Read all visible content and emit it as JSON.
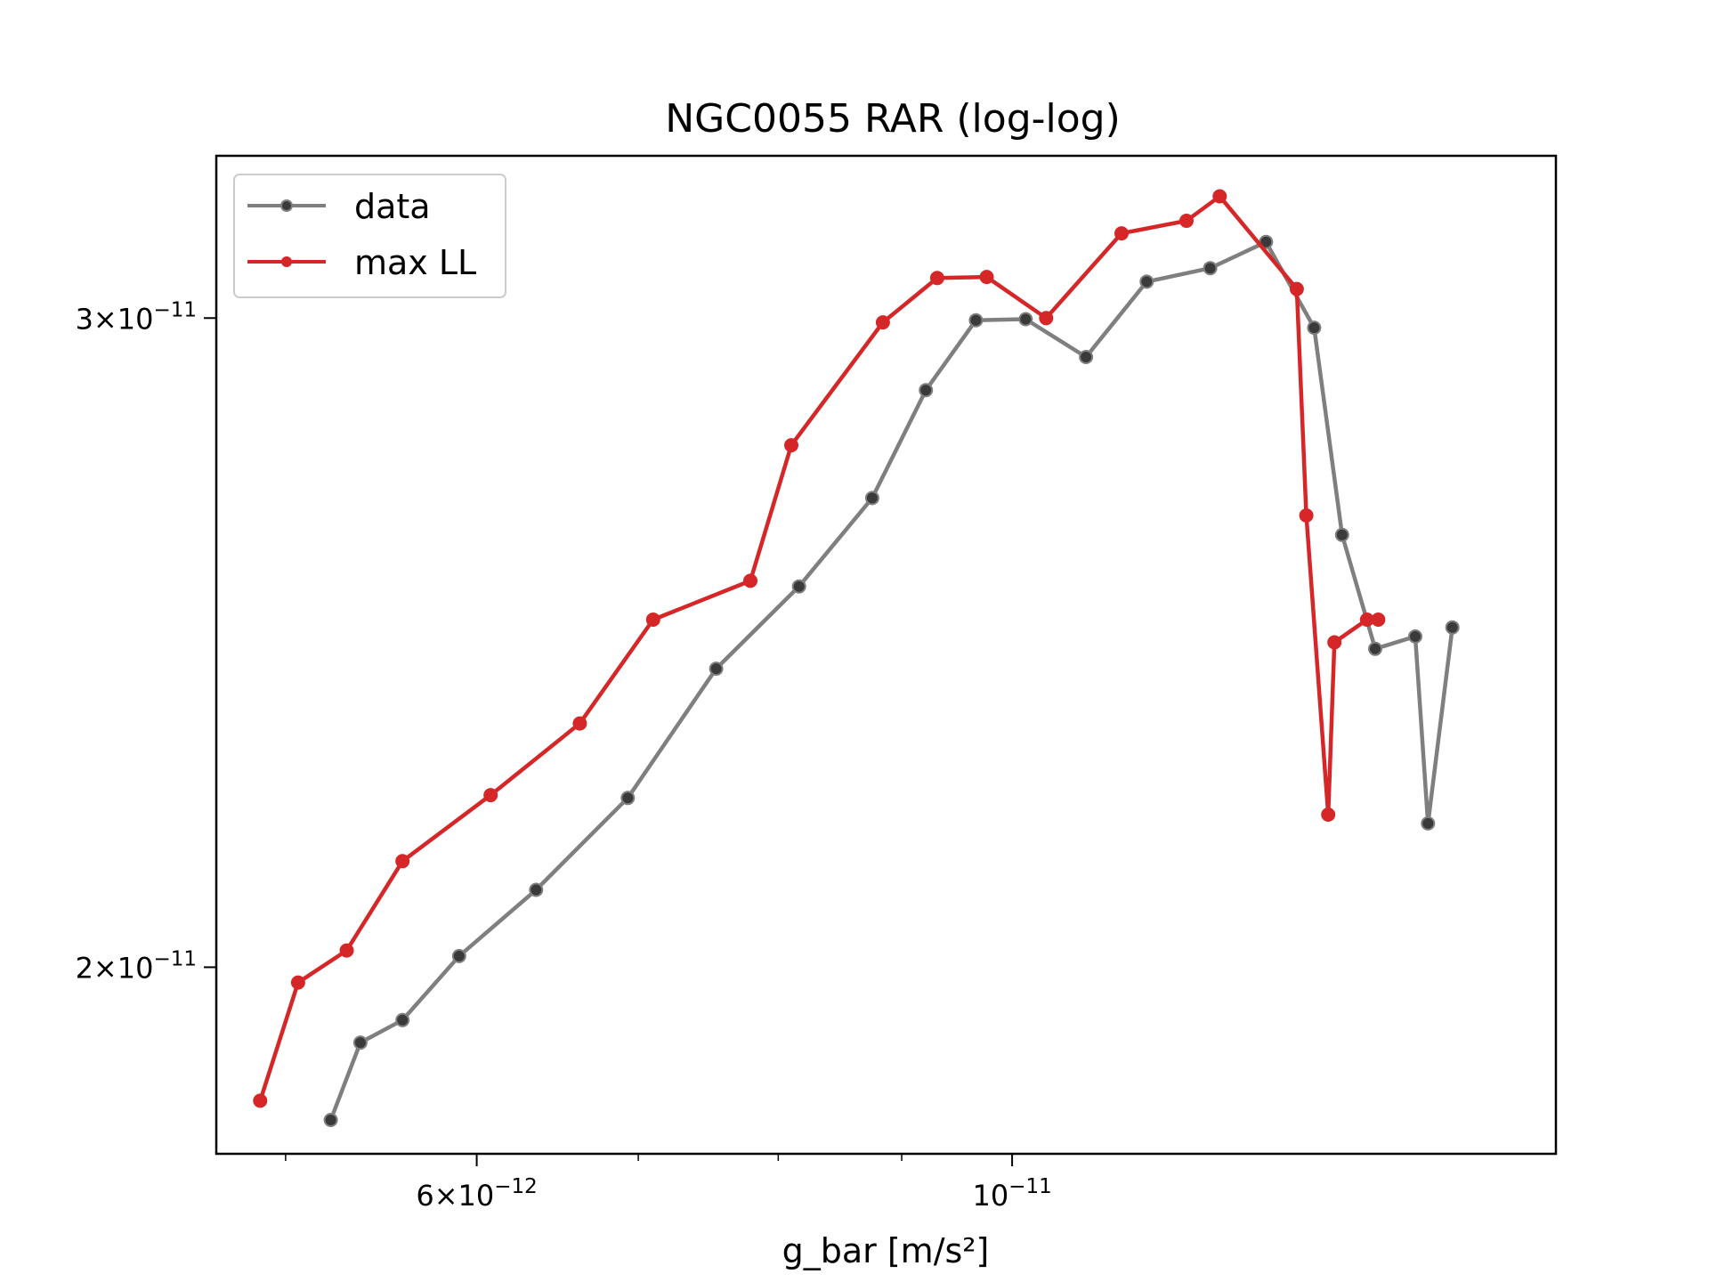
{
  "chart_data": {
    "type": "line",
    "title": "NGC0055 RAR (log-log)",
    "xlabel": "g_bar [m/s²]",
    "ylabel": "",
    "xscale": "log",
    "yscale": "log",
    "xlim": [
      4.68e-12,
      1.68e-11
    ],
    "ylim": [
      1.78e-11,
      3.32e-11
    ],
    "grid": false,
    "legend": "top-left",
    "x_ticks": [
      {
        "value": 6e-12,
        "mantissa": "6",
        "exponent": "−12"
      },
      {
        "value": 1e-11,
        "mantissa": "",
        "exponent": "−11"
      }
    ],
    "x_minor_ticks": [
      5e-12,
      7e-12,
      8e-12,
      9e-12
    ],
    "y_ticks": [
      {
        "value": 2e-11,
        "mantissa": "2",
        "exponent": "−11"
      },
      {
        "value": 3e-11,
        "mantissa": "3",
        "exponent": "−11"
      }
    ],
    "series": [
      {
        "name": "data",
        "color": "#7f7f7f",
        "marker_color": "#3a3a3a",
        "x": [
          5.22e-12,
          5.37e-12,
          5.59e-12,
          5.9e-12,
          6.35e-12,
          6.93e-12,
          7.54e-12,
          8.16e-12,
          8.75e-12,
          9.21e-12,
          9.66e-12,
          1.013e-11,
          1.073e-11,
          1.137e-11,
          1.208e-11,
          1.274e-11,
          1.334e-11,
          1.37e-11,
          1.414e-11,
          1.469e-11,
          1.487e-11,
          1.522e-11
        ],
        "y": [
          1.818e-11,
          1.908e-11,
          1.935e-11,
          2.014e-11,
          2.099e-11,
          2.223e-11,
          2.41e-11,
          2.537e-11,
          2.681e-11,
          2.868e-11,
          2.996e-11,
          2.998e-11,
          2.928e-11,
          3.069e-11,
          3.095e-11,
          3.146e-11,
          2.982e-11,
          2.62e-11,
          2.44e-11,
          2.459e-11,
          2.188e-11,
          2.473e-11
        ]
      },
      {
        "name": "max LL",
        "color": "#d62728",
        "marker_color": "#d62728",
        "x": [
          4.88e-12,
          5.06e-12,
          5.3e-12,
          5.59e-12,
          6.08e-12,
          6.62e-12,
          7.1e-12,
          7.79e-12,
          8.1e-12,
          8.84e-12,
          9.31e-12,
          9.76e-12,
          1.033e-11,
          1.11e-11,
          1.181e-11,
          1.219e-11,
          1.312e-11,
          1.324e-11,
          1.352e-11,
          1.36e-11,
          1.403e-11,
          1.418e-11
        ],
        "y": [
          1.84e-11,
          1.981e-11,
          2.021e-11,
          2.137e-11,
          2.227e-11,
          2.329e-11,
          2.485e-11,
          2.546e-11,
          2.771e-11,
          2.992e-11,
          3.076e-11,
          3.078e-11,
          3e-11,
          3.163e-11,
          3.188e-11,
          3.237e-11,
          3.055e-11,
          2.652e-11,
          2.2e-11,
          2.45e-11,
          2.485e-11,
          2.485e-11
        ]
      }
    ]
  }
}
